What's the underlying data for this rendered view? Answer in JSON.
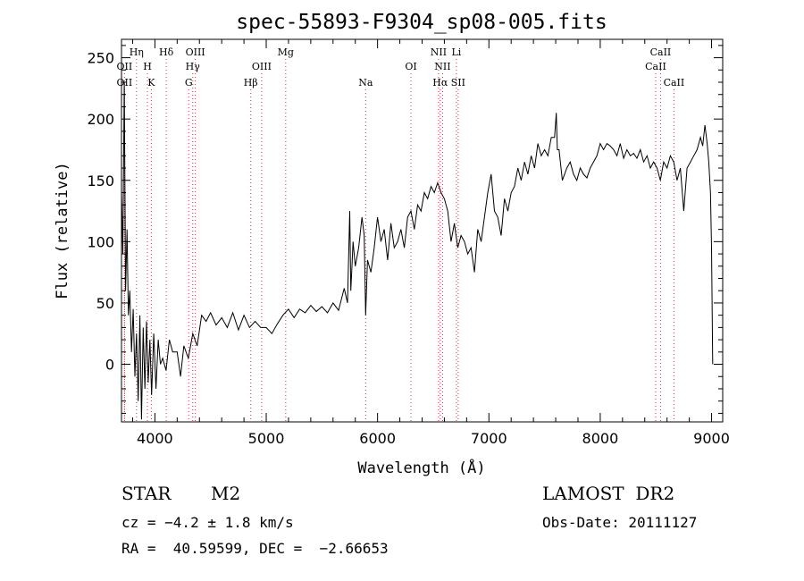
{
  "chart_data": {
    "type": "line",
    "title": "spec-55893-F9304_sp08-005.fits",
    "xlabel": "Wavelength (Å)",
    "ylabel": "Flux (relative)",
    "xlim": [
      3700,
      9100
    ],
    "ylim": [
      -47,
      265
    ],
    "x_ticks": [
      4000,
      5000,
      6000,
      7000,
      8000,
      9000
    ],
    "y_ticks": [
      0,
      50,
      100,
      150,
      200,
      250
    ],
    "grid": false,
    "series": [
      {
        "x": [
          3700,
          3712,
          3725,
          3737,
          3750,
          3762,
          3775,
          3790,
          3805,
          3820,
          3835,
          3850,
          3865,
          3880,
          3895,
          3910,
          3925,
          3940,
          3955,
          3970,
          3990,
          4010,
          4030,
          4050,
          4070,
          4100,
          4130,
          4160,
          4200,
          4230,
          4260,
          4300,
          4340,
          4380,
          4420,
          4460,
          4500,
          4550,
          4600,
          4650,
          4700,
          4750,
          4800,
          4850,
          4900,
          4950,
          5000,
          5050,
          5100,
          5150,
          5200,
          5250,
          5300,
          5350,
          5400,
          5450,
          5500,
          5550,
          5600,
          5650,
          5700,
          5730,
          5750,
          5760,
          5770,
          5780,
          5800,
          5830,
          5860,
          5880,
          5893,
          5910,
          5940,
          5970,
          6000,
          6030,
          6060,
          6090,
          6120,
          6150,
          6180,
          6210,
          6240,
          6270,
          6300,
          6330,
          6360,
          6390,
          6420,
          6450,
          6480,
          6510,
          6540,
          6570,
          6600,
          6630,
          6660,
          6690,
          6720,
          6750,
          6780,
          6810,
          6840,
          6870,
          6900,
          6930,
          6960,
          6990,
          7020,
          7050,
          7080,
          7110,
          7140,
          7170,
          7200,
          7230,
          7260,
          7290,
          7320,
          7350,
          7380,
          7410,
          7440,
          7470,
          7500,
          7530,
          7560,
          7590,
          7605,
          7615,
          7630,
          7660,
          7700,
          7730,
          7760,
          7790,
          7820,
          7850,
          7880,
          7910,
          7940,
          7970,
          8000,
          8030,
          8060,
          8090,
          8120,
          8150,
          8180,
          8210,
          8240,
          8270,
          8300,
          8330,
          8360,
          8390,
          8420,
          8450,
          8480,
          8510,
          8540,
          8570,
          8600,
          8630,
          8660,
          8690,
          8720,
          8750,
          8780,
          8810,
          8840,
          8870,
          8900,
          8920,
          8940,
          8960,
          8975,
          8990,
          9000,
          9010
        ],
        "y": [
          140,
          90,
          230,
          60,
          110,
          40,
          60,
          10,
          45,
          -10,
          25,
          -30,
          40,
          -45,
          30,
          -20,
          35,
          -15,
          20,
          -25,
          25,
          -20,
          20,
          0,
          5,
          -5,
          20,
          10,
          10,
          -10,
          15,
          5,
          25,
          15,
          40,
          35,
          42,
          32,
          38,
          30,
          42,
          28,
          40,
          30,
          35,
          30,
          30,
          25,
          33,
          40,
          45,
          38,
          45,
          42,
          48,
          43,
          47,
          42,
          50,
          44,
          62,
          50,
          125,
          60,
          80,
          100,
          80,
          95,
          120,
          105,
          40,
          85,
          75,
          95,
          120,
          100,
          110,
          85,
          115,
          95,
          100,
          110,
          95,
          120,
          125,
          110,
          130,
          125,
          140,
          135,
          145,
          140,
          148,
          140,
          135,
          125,
          100,
          115,
          95,
          105,
          100,
          90,
          95,
          75,
          110,
          100,
          120,
          140,
          155,
          125,
          120,
          105,
          135,
          125,
          140,
          145,
          160,
          150,
          165,
          155,
          170,
          160,
          180,
          170,
          175,
          170,
          185,
          185,
          205,
          175,
          175,
          150,
          160,
          165,
          155,
          150,
          160,
          155,
          152,
          160,
          165,
          170,
          180,
          175,
          180,
          178,
          175,
          170,
          180,
          168,
          175,
          170,
          172,
          168,
          175,
          165,
          170,
          160,
          165,
          160,
          150,
          165,
          160,
          170,
          165,
          150,
          160,
          125,
          160,
          165,
          170,
          175,
          185,
          178,
          195,
          180,
          165,
          140,
          95,
          0
        ]
      }
    ],
    "spectral_lines": [
      {
        "label": "Hη",
        "x": 3835,
        "row": 1
      },
      {
        "label": "OII",
        "x": 3727,
        "row": 2
      },
      {
        "label": "H",
        "x": 3933,
        "row": 2
      },
      {
        "label": "OII",
        "x": 3727,
        "row": 3
      },
      {
        "label": "K",
        "x": 3968,
        "row": 3
      },
      {
        "label": "Hδ",
        "x": 4102,
        "row": 1
      },
      {
        "label": "OIII",
        "x": 4363,
        "row": 1
      },
      {
        "label": "Hγ",
        "x": 4340,
        "row": 2
      },
      {
        "label": "G",
        "x": 4304,
        "row": 3
      },
      {
        "label": "OIII",
        "x": 4959,
        "row": 2
      },
      {
        "label": "Hβ",
        "x": 4861,
        "row": 3
      },
      {
        "label": "Mg",
        "x": 5175,
        "row": 1
      },
      {
        "label": "Na",
        "x": 5893,
        "row": 3
      },
      {
        "label": "NII",
        "x": 6548,
        "row": 1
      },
      {
        "label": "Li",
        "x": 6708,
        "row": 1
      },
      {
        "label": "OI",
        "x": 6300,
        "row": 2
      },
      {
        "label": "NII",
        "x": 6584,
        "row": 2
      },
      {
        "label": "Hα",
        "x": 6563,
        "row": 3
      },
      {
        "label": "SII",
        "x": 6724,
        "row": 3
      },
      {
        "label": "CaII",
        "x": 8542,
        "row": 1
      },
      {
        "label": "CaII",
        "x": 8498,
        "row": 2
      },
      {
        "label": "CaII",
        "x": 8662,
        "row": 3
      }
    ]
  },
  "info": {
    "object_class": "STAR",
    "subclass": "M2",
    "survey": "LAMOST  DR2",
    "redshift_line": "cz = −4.2 ± 1.8 km/s",
    "obs_date_line": "Obs-Date: 20111127",
    "coords_line": "RA =  40.59599, DEC =  −2.66653"
  }
}
